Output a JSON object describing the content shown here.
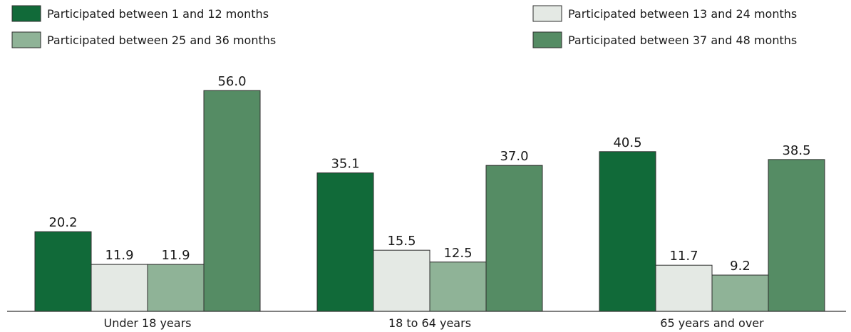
{
  "chart_data": {
    "type": "bar",
    "categories": [
      "Under 18 years",
      "18 to 64 years",
      "65 years and over"
    ],
    "series": [
      {
        "name": "Participated between 1 and 12 months",
        "values": [
          20.2,
          35.1,
          40.5
        ],
        "color": "#116a39"
      },
      {
        "name": "Participated between 13 and 24 months",
        "values": [
          11.9,
          15.5,
          11.7
        ],
        "color": "#e4e9e4"
      },
      {
        "name": "Participated between 25 and 36 months",
        "values": [
          11.9,
          12.5,
          9.2
        ],
        "color": "#8fb397"
      },
      {
        "name": "Participated between 37 and 48 months",
        "values": [
          56.0,
          37.0,
          38.5
        ],
        "color": "#558c64"
      }
    ],
    "value_labels": [
      [
        "20.2",
        "35.1",
        "40.5"
      ],
      [
        "11.9",
        "15.5",
        "11.7"
      ],
      [
        "11.9",
        "12.5",
        "9.2"
      ],
      [
        "56.0",
        "37.0",
        "38.5"
      ]
    ],
    "legend_position": "top",
    "grid": false,
    "title": "",
    "xlabel": "",
    "ylabel": "",
    "ylim": [
      0,
      60
    ]
  }
}
